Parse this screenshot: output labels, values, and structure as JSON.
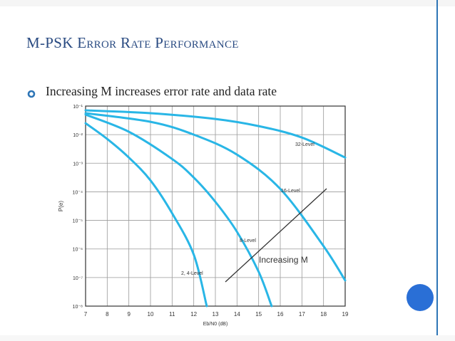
{
  "slide": {
    "title": "M-PSK Error Rate Performance",
    "bullet": "Increasing M increases error rate and data rate"
  },
  "colors": {
    "title": "#2a4b82",
    "curve": "#29b6e6",
    "accent": "#2e75b6",
    "nav_circle": "#2a6fd6"
  },
  "chart_data": {
    "type": "line",
    "xlabel": "Eb/N0 (dB)",
    "ylabel": "P(e)",
    "x_ticks": [
      7,
      8,
      9,
      10,
      11,
      12,
      13,
      14,
      15,
      16,
      17,
      18,
      19
    ],
    "y_ticks": [
      "10⁻¹",
      "10⁻²",
      "10⁻³",
      "10⁻⁴",
      "10⁻⁵",
      "10⁻⁶",
      "10⁻⁷",
      "10⁻⁸"
    ],
    "y_exponents": [
      -1,
      -2,
      -3,
      -4,
      -5,
      -6,
      -7,
      -8
    ],
    "xlim": [
      7,
      19
    ],
    "ylim_log10": [
      -8,
      -1
    ],
    "y_scale": "log",
    "grid": true,
    "series": [
      {
        "name": "2, 4-Level",
        "points": [
          [
            7,
            -1.6
          ],
          [
            8,
            -2.15
          ],
          [
            9,
            -2.8
          ],
          [
            10,
            -3.6
          ],
          [
            11,
            -4.75
          ],
          [
            12,
            -6.2
          ],
          [
            12.6,
            -8
          ]
        ]
      },
      {
        "name": "8-Level",
        "points": [
          [
            7,
            -1.3
          ],
          [
            9,
            -1.9
          ],
          [
            11,
            -2.85
          ],
          [
            12,
            -3.5
          ],
          [
            13,
            -4.35
          ],
          [
            14,
            -5.4
          ],
          [
            15,
            -6.8
          ],
          [
            15.6,
            -8
          ]
        ]
      },
      {
        "name": "16-Level",
        "points": [
          [
            7,
            -1.25
          ],
          [
            10,
            -1.55
          ],
          [
            12,
            -2.0
          ],
          [
            14,
            -2.7
          ],
          [
            16,
            -3.9
          ],
          [
            18,
            -5.9
          ],
          [
            19,
            -7.1
          ]
        ]
      },
      {
        "name": "32-Level",
        "points": [
          [
            7,
            -1.15
          ],
          [
            10,
            -1.25
          ],
          [
            13,
            -1.45
          ],
          [
            15,
            -1.7
          ],
          [
            17,
            -2.1
          ],
          [
            19,
            -2.8
          ]
        ]
      }
    ],
    "annotation": "Increasing M"
  }
}
